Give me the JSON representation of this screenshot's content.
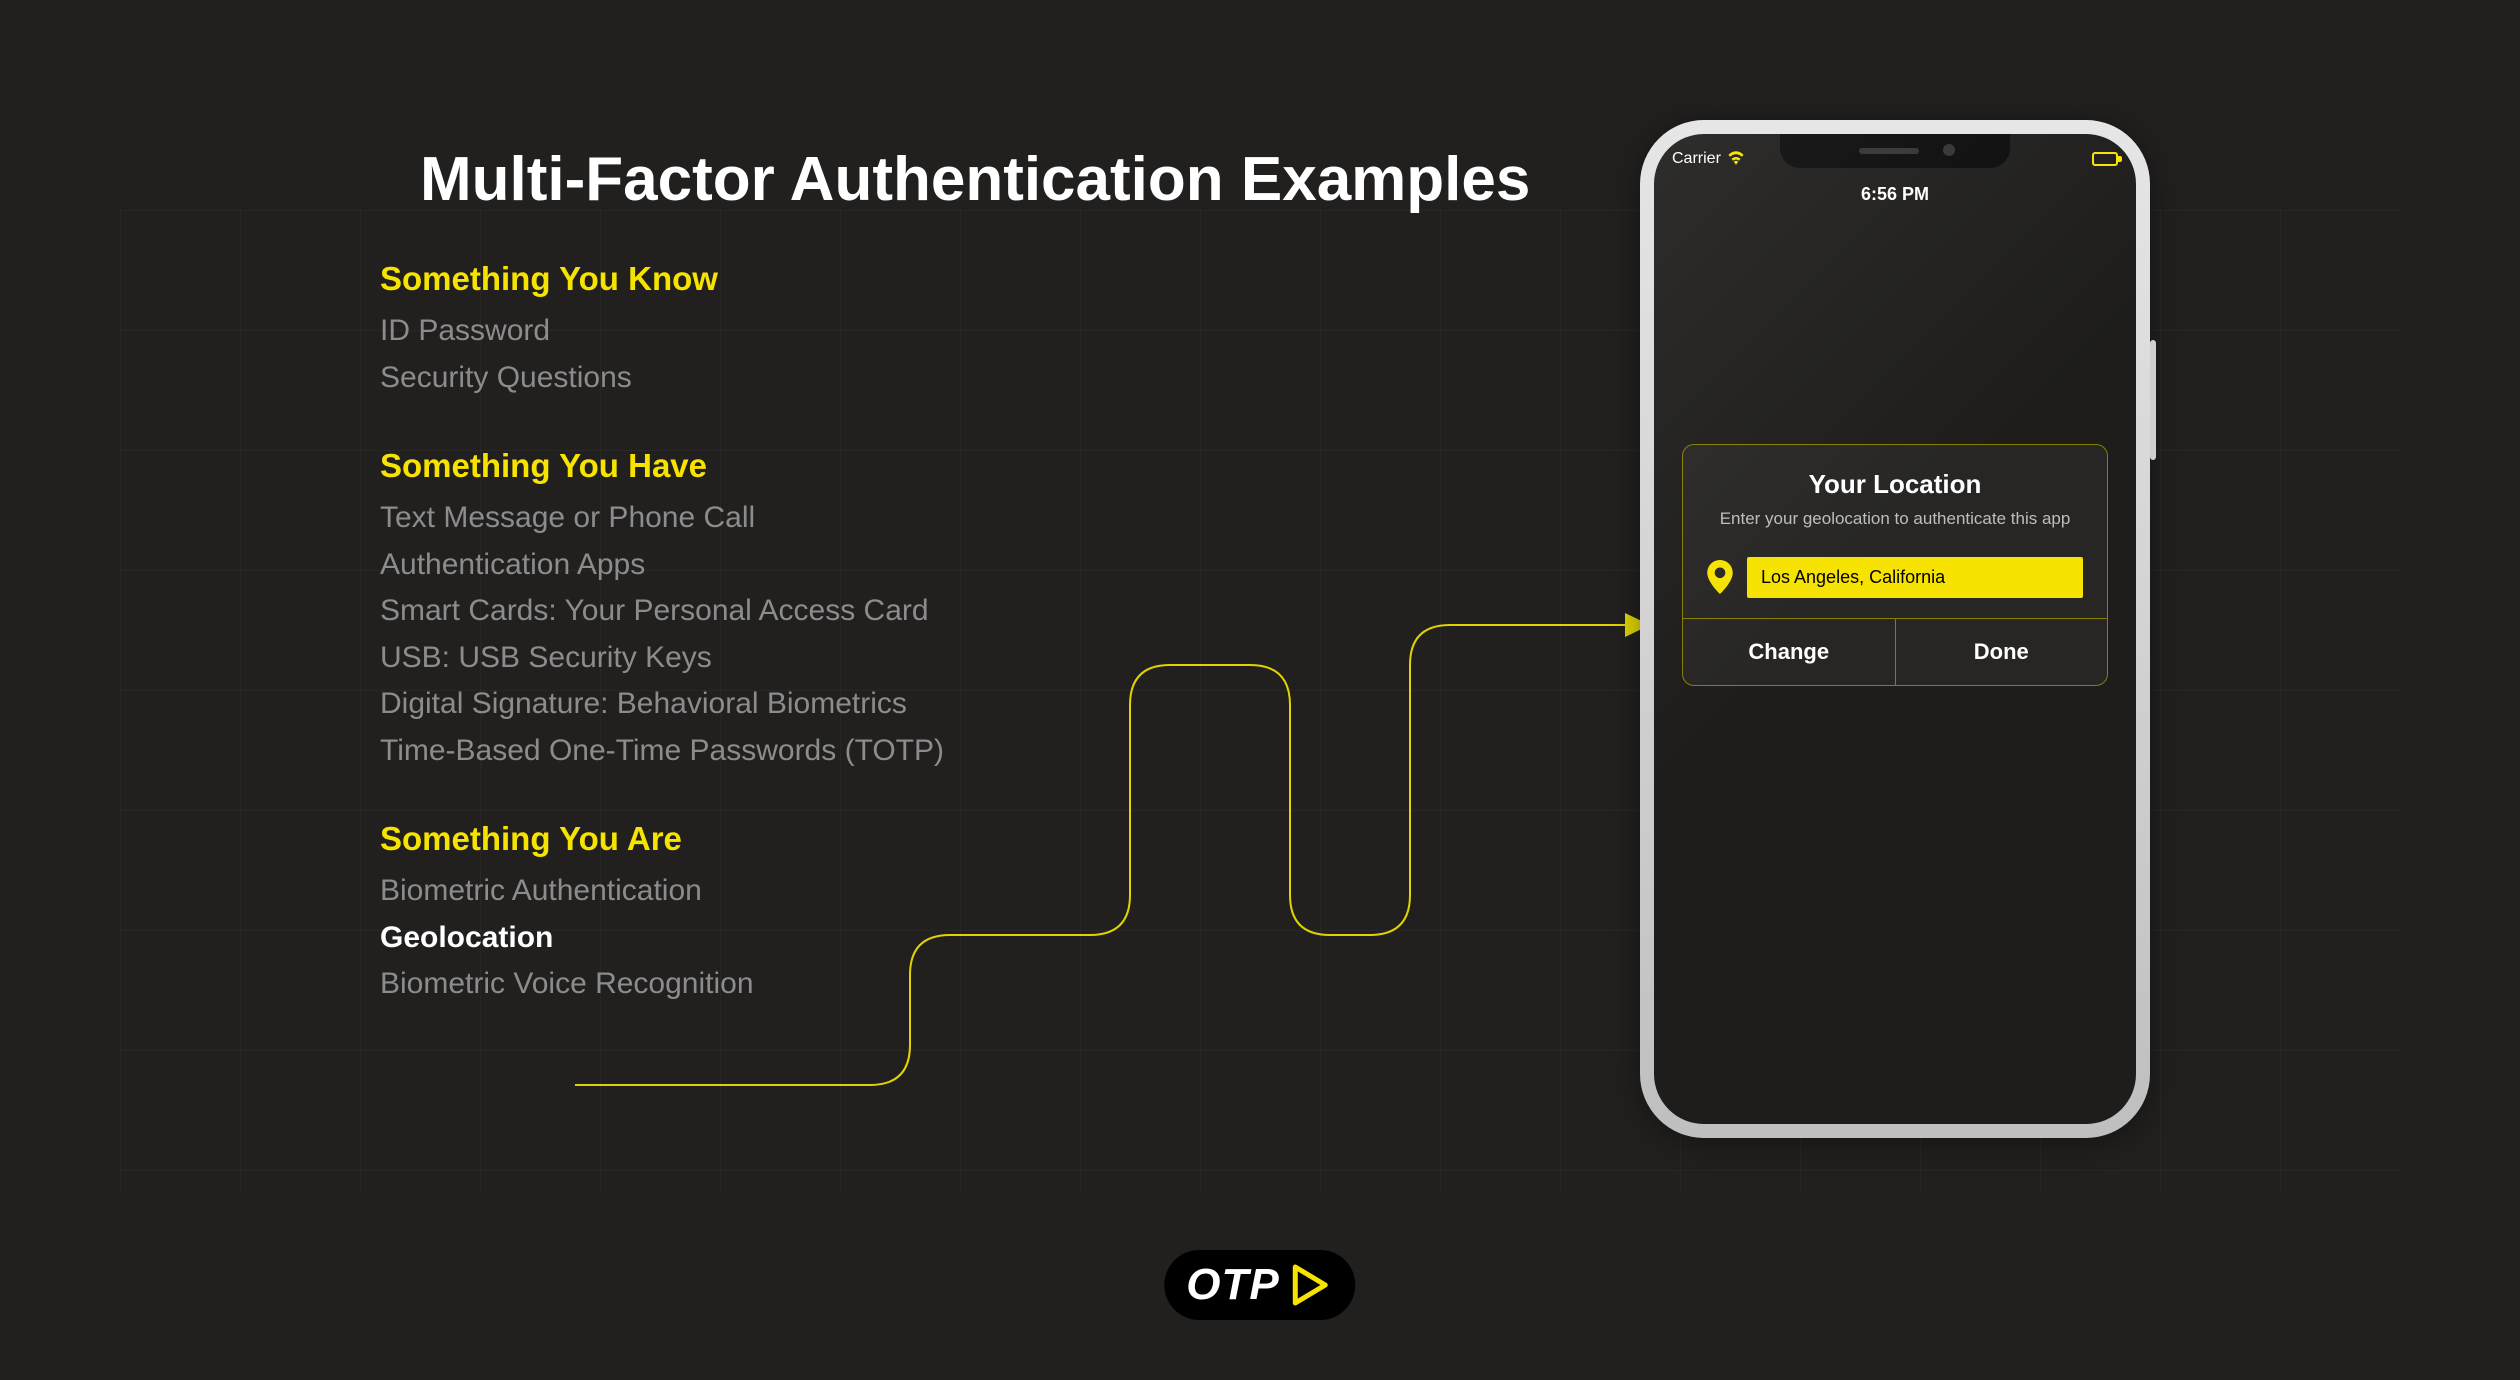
{
  "colors": {
    "background": "#22201f",
    "accent": "#f6e300",
    "text": "#ffffff",
    "muted": "#8c8c8c",
    "phone_frame": "#cfcfcf",
    "card_border": "#858000"
  },
  "title": "Multi-Factor Authentication Examples",
  "categories": [
    {
      "title": "Something You Know",
      "items": [
        {
          "label": "ID Password",
          "highlight": false
        },
        {
          "label": "Security Questions",
          "highlight": false
        }
      ]
    },
    {
      "title": "Something You Have",
      "items": [
        {
          "label": "Text Message or Phone Call",
          "highlight": false
        },
        {
          "label": "Authentication Apps",
          "highlight": false
        },
        {
          "label": "Smart Cards: Your Personal Access Card",
          "highlight": false
        },
        {
          "label": "USB: USB Security Keys",
          "highlight": false
        },
        {
          "label": "Digital Signature: Behavioral Biometrics",
          "highlight": false
        },
        {
          "label": "Time-Based One-Time Passwords (TOTP)",
          "highlight": false
        }
      ]
    },
    {
      "title": "Something You Are",
      "items": [
        {
          "label": "Biometric Authentication",
          "highlight": false
        },
        {
          "label": "Geolocation",
          "highlight": true
        },
        {
          "label": "Biometric Voice Recognition",
          "highlight": false
        }
      ]
    }
  ],
  "phone": {
    "carrier": "Carrier",
    "time": "6:56 PM",
    "card": {
      "title": "Your Location",
      "subtitle": "Enter your geolocation to authenticate this app",
      "location_value": "Los Angeles, California",
      "change_label": "Change",
      "done_label": "Done"
    }
  },
  "logo": {
    "text": "OTP"
  },
  "connector": {
    "stroke": "#e0d400",
    "stroke_width": 2
  }
}
